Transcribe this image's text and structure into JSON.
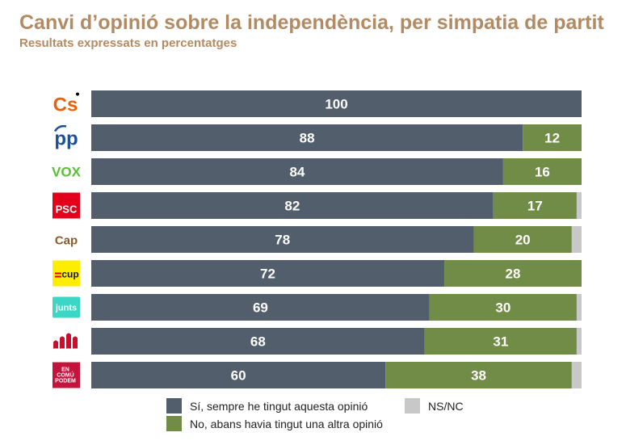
{
  "header": {
    "title": "Canvi d’opinió sobre la independència, per simpatia de partit",
    "subtitle": "Resultats expressats en percentatges"
  },
  "colors": {
    "title": "#b28a63",
    "series_yes": "#525e6c",
    "series_no": "#718c47",
    "series_nsnc": "#c8c8c8"
  },
  "parties": [
    {
      "key": "cs",
      "logo_text": "Cs",
      "color": "#eb6109"
    },
    {
      "key": "pp",
      "logo_text": "pp",
      "color": "#1d4f9a"
    },
    {
      "key": "vox",
      "logo_text": "VOX",
      "color": "#5ac035"
    },
    {
      "key": "psc",
      "logo_text": "PSC",
      "color": "#e2001a"
    },
    {
      "key": "cap",
      "logo_text": "Cap",
      "color": "#8a5a2b"
    },
    {
      "key": "cup",
      "logo_text": "cup",
      "color": "#ffed00"
    },
    {
      "key": "junts",
      "logo_text": "junts",
      "color": "#3dd6c4"
    },
    {
      "key": "erc",
      "logo_text": "",
      "color": "#c8102e"
    },
    {
      "key": "comuns",
      "logo_text": "EN COMÚ PODEM",
      "color": "#c4143e"
    }
  ],
  "chart_data": {
    "type": "bar",
    "orientation": "horizontal",
    "stacked": true,
    "categories": [
      "Cs",
      "PP",
      "VOX",
      "PSC",
      "Cap",
      "CUP",
      "Junts",
      "ERC",
      "En Comú Podem"
    ],
    "series": [
      {
        "name": "Sí, sempre he tingut aquesta opinió",
        "values": [
          100,
          88,
          84,
          82,
          78,
          72,
          69,
          68,
          60
        ],
        "color": "#525e6c"
      },
      {
        "name": "No, abans havia tingut una altra opinió",
        "values": [
          0,
          12,
          16,
          17,
          20,
          28,
          30,
          31,
          38
        ],
        "color": "#718c47"
      },
      {
        "name": "NS/NC",
        "values": [
          0,
          0,
          0,
          1,
          2,
          0,
          1,
          1,
          2
        ],
        "color": "#c8c8c8"
      }
    ],
    "data_labels": [
      [
        "100",
        "",
        ""
      ],
      [
        "88",
        "12",
        ""
      ],
      [
        "84",
        "16",
        ""
      ],
      [
        "82",
        "17",
        ""
      ],
      [
        "78",
        "20",
        ""
      ],
      [
        "72",
        "28",
        ""
      ],
      [
        "69",
        "30",
        ""
      ],
      [
        "68",
        "31",
        ""
      ],
      [
        "60",
        "38",
        ""
      ]
    ],
    "xlim": [
      0,
      100
    ],
    "grid": false,
    "legend_position": "bottom"
  }
}
